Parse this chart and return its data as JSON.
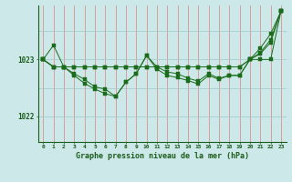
{
  "background_color": "#cce8e8",
  "plot_bg_color": "#cce8e8",
  "line_color": "#1a6b1a",
  "xlabel": "Graphe pression niveau de la mer (hPa)",
  "xlim": [
    -0.5,
    23.5
  ],
  "ylim": [
    1021.55,
    1023.95
  ],
  "yticks": [
    1022,
    1023
  ],
  "xticks": [
    0,
    1,
    2,
    3,
    4,
    5,
    6,
    7,
    8,
    9,
    10,
    11,
    12,
    13,
    14,
    15,
    16,
    17,
    18,
    19,
    20,
    21,
    22,
    23
  ],
  "series1_upper": [
    1023.0,
    1023.25,
    1022.87,
    1022.87,
    1022.87,
    1022.87,
    1022.87,
    1022.87,
    1022.87,
    1022.87,
    1022.87,
    1022.87,
    1022.87,
    1022.87,
    1022.87,
    1022.87,
    1022.87,
    1022.87,
    1022.87,
    1022.87,
    1023.0,
    1023.2,
    1023.45,
    1023.85
  ],
  "series2_dip": [
    1023.0,
    1022.87,
    1022.87,
    1022.75,
    1022.65,
    1022.52,
    1022.48,
    1022.35,
    1022.6,
    1022.75,
    1023.07,
    1022.87,
    1022.78,
    1022.75,
    1022.67,
    1022.62,
    1022.75,
    1022.67,
    1022.72,
    1022.72,
    1023.0,
    1023.1,
    1023.3,
    1023.85
  ],
  "series3_flat": [
    1023.0,
    1022.87,
    1022.87,
    1022.87,
    1022.87,
    1022.87,
    1022.87,
    1022.87,
    1022.87,
    1022.87,
    1022.87,
    1022.87,
    1022.87,
    1022.87,
    1022.87,
    1022.87,
    1022.87,
    1022.87,
    1022.87,
    1022.87,
    1023.0,
    1023.0,
    1023.0,
    1023.85
  ],
  "series4_deep": [
    1023.0,
    1022.87,
    1022.87,
    1022.72,
    1022.58,
    1022.48,
    1022.4,
    1022.35,
    1022.6,
    1022.75,
    1023.07,
    1022.83,
    1022.72,
    1022.68,
    1022.63,
    1022.57,
    1022.72,
    1022.65,
    1022.72,
    1022.72,
    1023.0,
    1023.12,
    1023.35,
    1023.85
  ],
  "vgrid_color": "#e08080",
  "hgrid_color": "#a0c8c8"
}
